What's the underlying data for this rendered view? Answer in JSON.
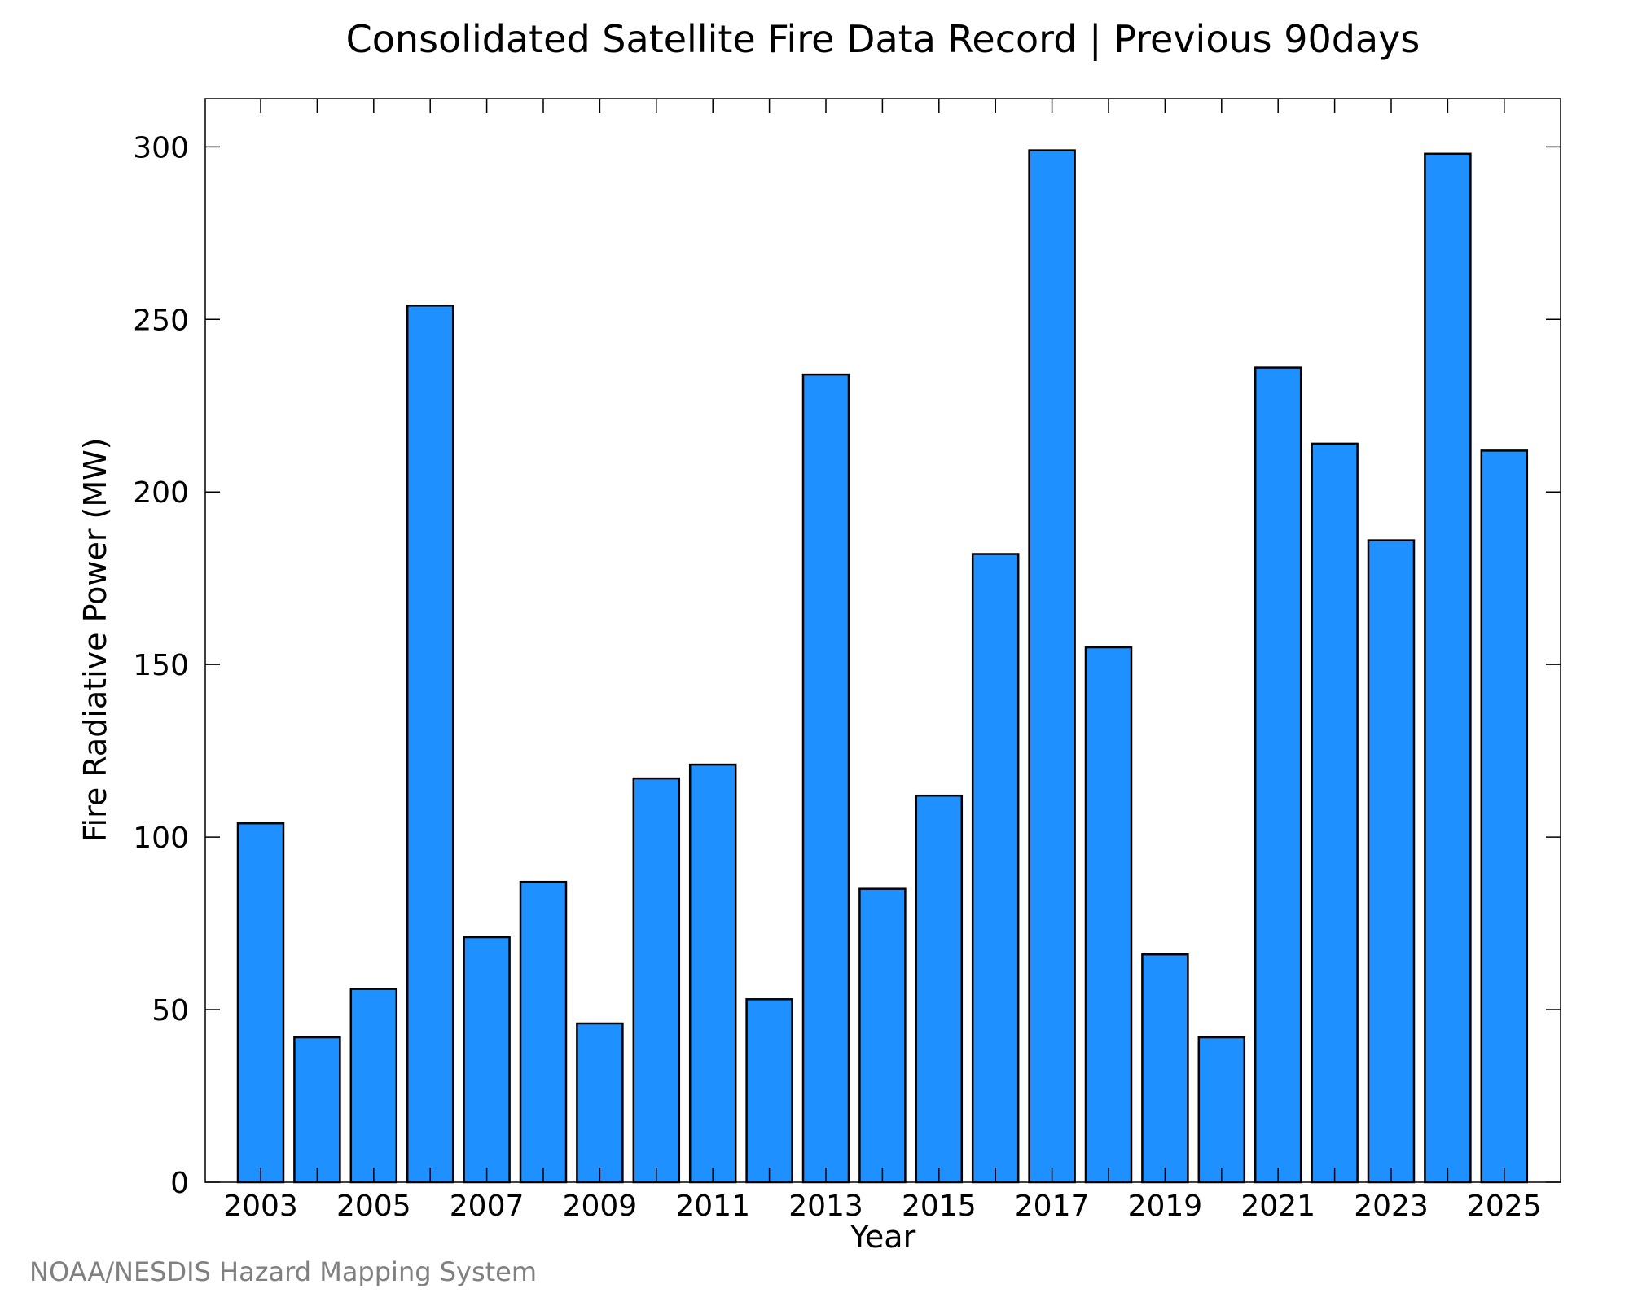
{
  "chart_data": {
    "type": "bar",
    "title": "Consolidated Satellite Fire Data Record | Previous 90days",
    "xlabel": "Year",
    "ylabel": "Fire Radiative Power (MW)",
    "ylim": [
      0,
      314
    ],
    "yticks": [
      0,
      50,
      100,
      150,
      200,
      250,
      300
    ],
    "categories": [
      "2003",
      "2004",
      "2005",
      "2006",
      "2007",
      "2008",
      "2009",
      "2010",
      "2011",
      "2012",
      "2013",
      "2014",
      "2015",
      "2016",
      "2017",
      "2018",
      "2019",
      "2020",
      "2021",
      "2022",
      "2023",
      "2024",
      "2025"
    ],
    "xtick_labels": [
      "2003",
      "2005",
      "2007",
      "2009",
      "2011",
      "2013",
      "2015",
      "2017",
      "2019",
      "2021",
      "2023",
      "2025"
    ],
    "values": [
      104,
      42,
      56,
      254,
      71,
      87,
      46,
      117,
      121,
      53,
      234,
      85,
      112,
      182,
      299,
      155,
      66,
      42,
      236,
      214,
      186,
      298,
      212
    ],
    "grid": false,
    "bar_color": "#1e90ff",
    "edge_color": "#000000"
  },
  "footer": {
    "credit": "NOAA/NESDIS Hazard Mapping System"
  }
}
